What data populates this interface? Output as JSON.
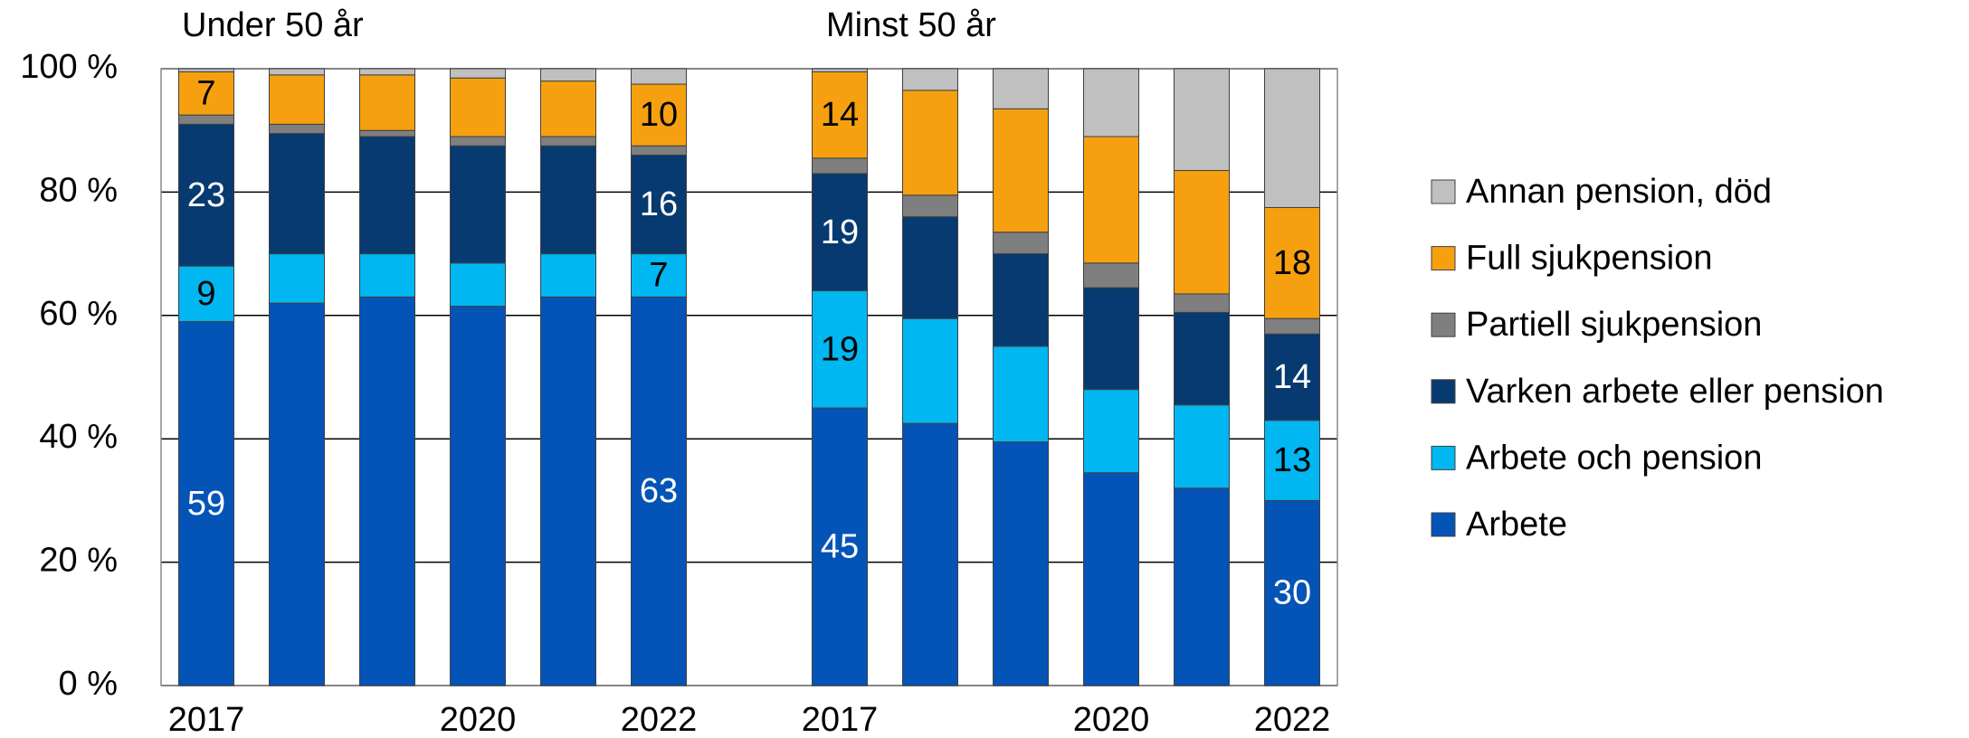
{
  "chart_data": {
    "type": "stacked_bar",
    "annotations": [
      "Under 50 år",
      "Minst 50 år"
    ],
    "categories": [
      "2017",
      null,
      null,
      "2020",
      null,
      "2022",
      null,
      "2017",
      null,
      null,
      "2020",
      null,
      "2022"
    ],
    "series": [
      {
        "name": "Arbete",
        "color": "#0454b8",
        "label_color": "#ffffff",
        "values": [
          59,
          62,
          63,
          61.5,
          63,
          63,
          null,
          45,
          42.5,
          39.5,
          34.5,
          32,
          30
        ],
        "value_labels": [
          "59",
          null,
          null,
          null,
          null,
          "63",
          null,
          "45",
          null,
          null,
          null,
          null,
          "30"
        ]
      },
      {
        "name": "Arbete och pension",
        "color": "#00b7f1",
        "label_color": "#000000",
        "values": [
          9,
          8,
          7,
          7,
          7,
          7,
          null,
          19,
          17,
          15.5,
          13.5,
          13.5,
          13
        ],
        "value_labels": [
          "9",
          null,
          null,
          null,
          null,
          "7",
          null,
          "19",
          null,
          null,
          null,
          null,
          "13"
        ]
      },
      {
        "name": "Varken arbete eller pension",
        "color": "#073a70",
        "label_color": "#ffffff",
        "values": [
          23,
          19.5,
          19,
          19,
          17.5,
          16,
          null,
          19,
          16.5,
          15,
          16.5,
          15,
          14
        ],
        "value_labels": [
          "23",
          null,
          null,
          null,
          null,
          "16",
          null,
          "19",
          null,
          null,
          null,
          null,
          "14"
        ]
      },
      {
        "name": "Partiell sjukpension",
        "color": "#7f7f7f",
        "label_color": "#ffffff",
        "values": [
          1.5,
          1.5,
          1,
          1.5,
          1.5,
          1.5,
          null,
          2.5,
          3.5,
          3.5,
          4,
          3,
          2.5
        ]
      },
      {
        "name": "Full sjukpension",
        "color": "#f7a00f",
        "label_color": "#000000",
        "values": [
          7,
          8,
          9,
          9.5,
          9,
          10,
          null,
          14,
          17,
          20,
          20.5,
          20,
          18
        ],
        "value_labels": [
          "7",
          null,
          null,
          null,
          null,
          "10",
          null,
          "14",
          null,
          null,
          null,
          null,
          "18"
        ]
      },
      {
        "name": "Annan pension, död",
        "color": "#c0c0c0",
        "label_color": "#000000",
        "values": [
          0.5,
          1,
          1,
          1.5,
          2,
          2.5,
          null,
          0.5,
          3.5,
          6.5,
          11,
          16.5,
          22.5
        ]
      }
    ],
    "ylim": [
      0,
      100
    ],
    "yticks": [
      {
        "value": 0,
        "label": "0 %"
      },
      {
        "value": 20,
        "label": "20 %"
      },
      {
        "value": 40,
        "label": "40 %"
      },
      {
        "value": 60,
        "label": "60 %"
      },
      {
        "value": 80,
        "label": "80 %"
      },
      {
        "value": 100,
        "label": "100 %"
      }
    ],
    "grid": true,
    "legend": "right"
  }
}
